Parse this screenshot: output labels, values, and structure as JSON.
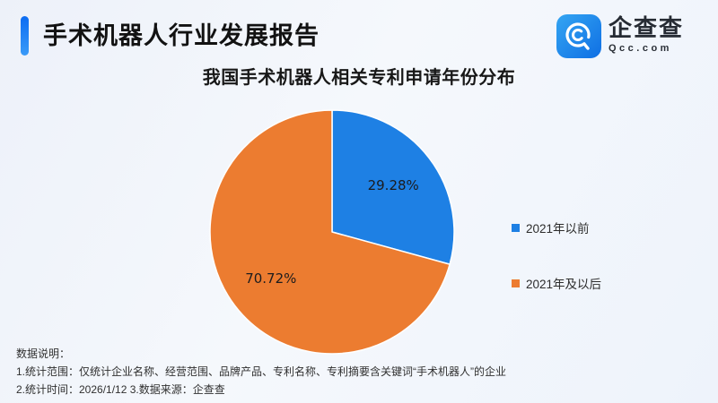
{
  "header": {
    "title": "手术机器人行业发展报告",
    "logo": {
      "name": "企查查",
      "domain": "Qcc.com",
      "icon": "magnifier-c-icon",
      "icon_gradient": [
        "#34a5f2",
        "#0f6fe4"
      ]
    },
    "accent_color": "#0c6cf2"
  },
  "chart_data": {
    "type": "pie",
    "title": "我国手术机器人相关专利申请年份分布",
    "start": "top-clockwise",
    "legend_position": "right",
    "slices": [
      {
        "label": "2021年以前",
        "value": 29.28,
        "display": "29.28%",
        "color": "#1e80e4"
      },
      {
        "label": "2021年及以后",
        "value": 70.72,
        "display": "70.72%",
        "color": "#ec7c30"
      }
    ]
  },
  "footer": {
    "heading": "数据说明：",
    "notes": [
      "1.统计范围：仅统计企业名称、经营范围、品牌产品、专利名称、专利摘要含关键词“手术机器人”的企业",
      "2.统计时间：2026/1/12 3.数据来源：企查查"
    ]
  },
  "theme": {
    "background": "#f2f5fb",
    "text": "#141414"
  }
}
